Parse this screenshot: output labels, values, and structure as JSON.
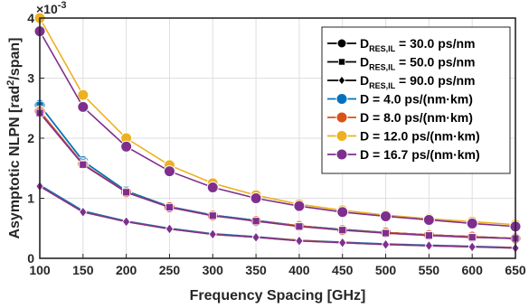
{
  "chart_data": {
    "type": "line",
    "x": [
      100,
      150,
      200,
      250,
      300,
      350,
      400,
      450,
      500,
      550,
      600,
      650
    ],
    "xlabel": "Frequency Spacing [GHz]",
    "ylabel_main": "Asymptotic NLPN [rad",
    "ylabel_sup": "2",
    "ylabel_end": "/span]",
    "y_exponent_base": "×10",
    "y_exponent_power": "-3",
    "xlim": [
      100,
      650
    ],
    "ylim": [
      0,
      4
    ],
    "xticks": [
      "100",
      "150",
      "200",
      "250",
      "300",
      "350",
      "400",
      "450",
      "500",
      "550",
      "600",
      "650"
    ],
    "yticks": [
      "0",
      "1",
      "2",
      "3",
      "4"
    ],
    "grid": true,
    "legend_position": "top-right",
    "legend_style_entries": [
      {
        "prefix": "D",
        "sub": "RES,IL",
        "suffix": " = 30.0 ps/nm",
        "marker": "circle"
      },
      {
        "prefix": "D",
        "sub": "RES,IL",
        "suffix": " = 50.0 ps/nm",
        "marker": "square"
      },
      {
        "prefix": "D",
        "sub": "RES,IL",
        "suffix": " = 90.0 ps/nm",
        "marker": "diamond"
      }
    ],
    "series": [
      {
        "name": "D = 4.0 ps/(nm·km)",
        "color": "#0072BD",
        "dres": {
          "30.0": [
            2.55,
            1.62,
            1.12,
            0.86,
            0.72,
            0.63,
            0.54,
            0.48,
            0.43,
            0.39,
            0.36,
            0.33
          ],
          "50.0": [
            2.55,
            1.62,
            1.12,
            0.86,
            0.72,
            0.63,
            0.54,
            0.48,
            0.43,
            0.39,
            0.36,
            0.33
          ],
          "90.0": [
            1.22,
            0.79,
            0.62,
            0.5,
            0.41,
            0.36,
            0.3,
            0.27,
            0.24,
            0.22,
            0.2,
            0.18
          ]
        }
      },
      {
        "name": "D = 8.0 ps/(nm·km)",
        "color": "#D95319",
        "dres": {
          "30.0": [
            2.45,
            1.57,
            1.1,
            0.85,
            0.71,
            0.62,
            0.54,
            0.47,
            0.43,
            0.39,
            0.36,
            0.33
          ],
          "50.0": [
            2.45,
            1.57,
            1.1,
            0.85,
            0.71,
            0.62,
            0.54,
            0.47,
            0.43,
            0.39,
            0.36,
            0.33
          ],
          "90.0": [
            1.2,
            0.77,
            0.61,
            0.49,
            0.4,
            0.35,
            0.3,
            0.26,
            0.23,
            0.21,
            0.19,
            0.18
          ]
        }
      },
      {
        "name": "D = 12.0 ps/(nm·km)",
        "color": "#EDB120",
        "dres": {
          "30.0": [
            4.0,
            2.72,
            2.0,
            1.55,
            1.25,
            1.05,
            0.9,
            0.8,
            0.72,
            0.66,
            0.61,
            0.56
          ],
          "50.0": [
            2.42,
            1.56,
            1.1,
            0.85,
            0.71,
            0.62,
            0.53,
            0.47,
            0.42,
            0.38,
            0.35,
            0.33
          ],
          "90.0": [
            1.2,
            0.77,
            0.61,
            0.49,
            0.4,
            0.35,
            0.29,
            0.26,
            0.23,
            0.21,
            0.19,
            0.17
          ]
        }
      },
      {
        "name": "D = 16.7 ps/(nm·km)",
        "color": "#7E2F8E",
        "dres": {
          "30.0": [
            3.78,
            2.52,
            1.86,
            1.45,
            1.18,
            1.0,
            0.87,
            0.77,
            0.7,
            0.64,
            0.58,
            0.53
          ],
          "50.0": [
            2.42,
            1.56,
            1.1,
            0.85,
            0.71,
            0.62,
            0.53,
            0.47,
            0.42,
            0.38,
            0.35,
            0.33
          ],
          "90.0": [
            1.2,
            0.77,
            0.61,
            0.49,
            0.4,
            0.35,
            0.29,
            0.26,
            0.23,
            0.21,
            0.19,
            0.17
          ]
        }
      }
    ]
  }
}
